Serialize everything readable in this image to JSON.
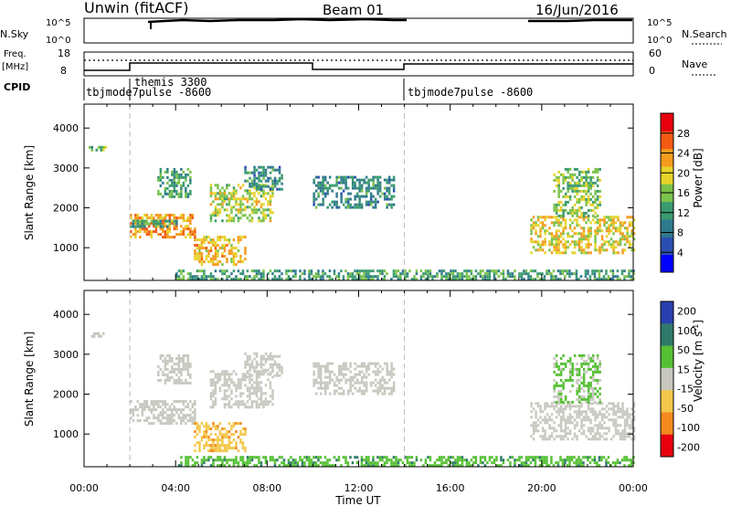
{
  "header": {
    "station": "Unwin (fitACF)",
    "beam": "Beam 01",
    "date": "16/Jun/2016"
  },
  "nsky_panel": {
    "left_label": "N.Sky",
    "right_label": "N.Search",
    "ticks_left": [
      "10^5",
      "10^0"
    ],
    "ticks_right": [
      "10^5",
      "10^0"
    ]
  },
  "freq_panel": {
    "left_label_line1": "Freq.",
    "left_label_line2": "[MHz]",
    "left_ticks": [
      "18",
      "8"
    ],
    "right_ticks": [
      "60",
      "0"
    ],
    "right_label": "Nave"
  },
  "cpid_panel": {
    "label": "CPID",
    "modes": [
      "tbjmode7pulse -8600",
      "themis 3300",
      "tbjmode7pulse -8600"
    ]
  },
  "chart_data": [
    {
      "type": "heatmap",
      "panel": "power",
      "ylabel": "Slant Range [km]",
      "xlabel": "",
      "x_ticks": [
        "00:00",
        "04:00",
        "08:00",
        "12:00",
        "16:00",
        "20:00",
        "00:00"
      ],
      "y_ticks": [
        1000,
        2000,
        3000,
        4000
      ],
      "ylim": [
        180,
        4600
      ],
      "xlim_hours": [
        0,
        24
      ],
      "colorbar": {
        "label": "Power [dB]",
        "ticks": [
          4,
          8,
          12,
          16,
          20,
          24,
          28
        ],
        "range": [
          0,
          32
        ]
      },
      "mode_changes_hours": [
        2.0,
        14.0
      ],
      "regions": [
        {
          "t0": 0.2,
          "t1": 0.9,
          "r0": 3450,
          "r1": 3550,
          "level": 16
        },
        {
          "t0": 2.0,
          "t1": 4.8,
          "r0": 1300,
          "r1": 1850,
          "level": 26
        },
        {
          "t0": 2.0,
          "t1": 4.0,
          "r0": 1500,
          "r1": 1700,
          "level": 14
        },
        {
          "t0": 3.2,
          "t1": 4.6,
          "r0": 2300,
          "r1": 3000,
          "level": 14
        },
        {
          "t0": 4.8,
          "t1": 7.0,
          "r0": 600,
          "r1": 1300,
          "level": 24
        },
        {
          "t0": 5.5,
          "t1": 8.2,
          "r0": 1700,
          "r1": 2600,
          "level": 20
        },
        {
          "t0": 7.0,
          "t1": 8.6,
          "r0": 2450,
          "r1": 3050,
          "level": 12
        },
        {
          "t0": 10.0,
          "t1": 13.5,
          "r0": 2000,
          "r1": 2800,
          "level": 12
        },
        {
          "t0": 19.5,
          "t1": 24.0,
          "r0": 900,
          "r1": 1800,
          "level": 22
        },
        {
          "t0": 20.5,
          "t1": 22.5,
          "r0": 1800,
          "r1": 3000,
          "level": 18
        },
        {
          "t0": 4.0,
          "t1": 24.0,
          "r0": 200,
          "r1": 450,
          "level": 14
        }
      ]
    },
    {
      "type": "heatmap",
      "panel": "velocity",
      "ylabel": "Slant Range [km]",
      "xlabel": "Time UT",
      "x_ticks": [
        "00:00",
        "04:00",
        "08:00",
        "12:00",
        "16:00",
        "20:00",
        "00:00"
      ],
      "y_ticks": [
        1000,
        2000,
        3000,
        4000
      ],
      "ylim": [
        180,
        4600
      ],
      "xlim_hours": [
        0,
        24
      ],
      "colorbar": {
        "label": "Velocity [m s^-1]",
        "ticks": [
          200,
          100,
          50,
          15,
          -15,
          -50,
          -100,
          -200
        ]
      },
      "mode_changes_hours": [
        2.0,
        14.0
      ],
      "regions": [
        {
          "t0": 0.2,
          "t1": 0.9,
          "r0": 3450,
          "r1": 3550,
          "level": 0
        },
        {
          "t0": 2.0,
          "t1": 4.8,
          "r0": 1300,
          "r1": 1850,
          "level": 0
        },
        {
          "t0": 3.2,
          "t1": 4.6,
          "r0": 2300,
          "r1": 3000,
          "level": 0
        },
        {
          "t0": 4.8,
          "t1": 7.0,
          "r0": 600,
          "r1": 1300,
          "level": -40
        },
        {
          "t0": 5.5,
          "t1": 8.2,
          "r0": 1700,
          "r1": 2600,
          "level": 0
        },
        {
          "t0": 7.0,
          "t1": 8.6,
          "r0": 2450,
          "r1": 3050,
          "level": 0
        },
        {
          "t0": 10.0,
          "t1": 13.5,
          "r0": 2000,
          "r1": 2800,
          "level": 0
        },
        {
          "t0": 19.5,
          "t1": 24.0,
          "r0": 900,
          "r1": 1800,
          "level": 0
        },
        {
          "t0": 20.5,
          "t1": 22.5,
          "r0": 1800,
          "r1": 3000,
          "level": 20
        },
        {
          "t0": 4.0,
          "t1": 24.0,
          "r0": 200,
          "r1": 450,
          "level": 40
        }
      ]
    }
  ]
}
